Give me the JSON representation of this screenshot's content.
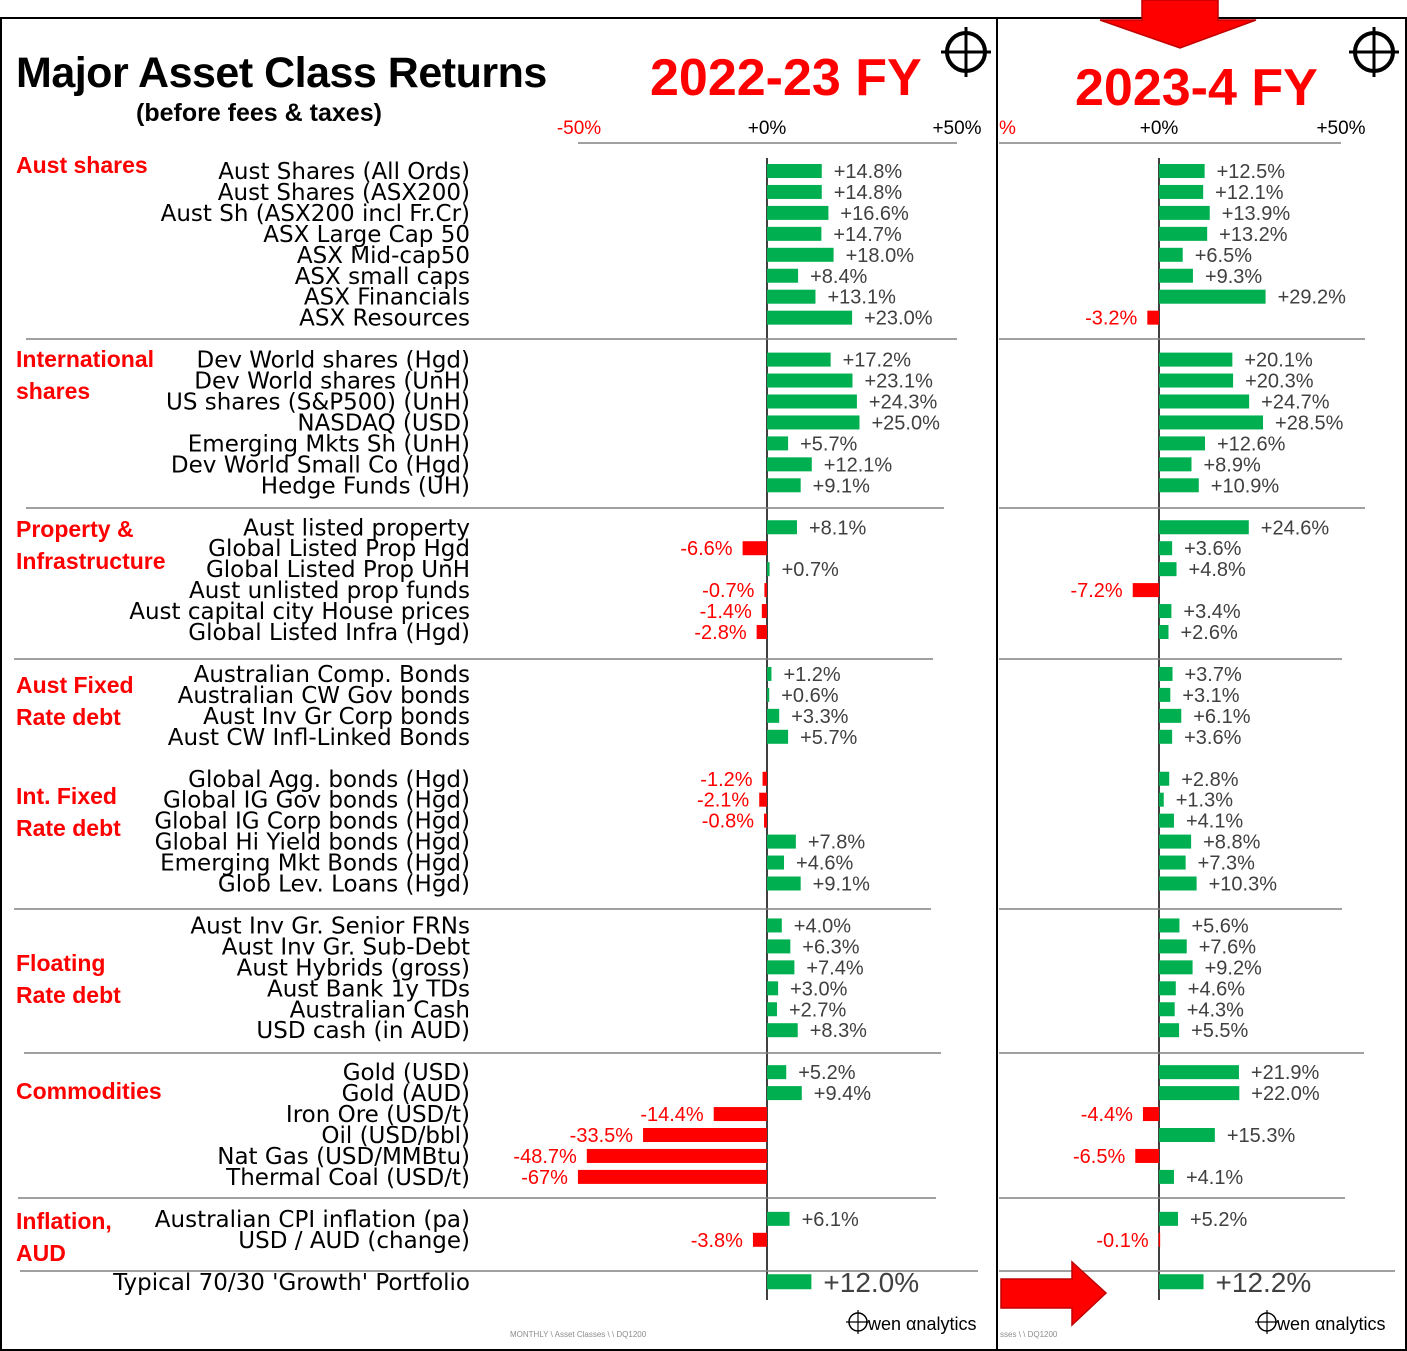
{
  "title": "Major Asset Class Returns",
  "subtitle": "(before fees & taxes)",
  "colors": {
    "positive": "#00b050",
    "negative": "#ff0000",
    "accent": "#ff0000",
    "text": "#404040"
  },
  "icons": {
    "crosshair": "crosshair-icon",
    "right_arrow": "right-arrow-icon",
    "down_arrow": "down-arrow-icon"
  },
  "footer": {
    "source_left": "MONTHLY \\ Asset Classes \\ \\ DQ1200",
    "source_right": "sses \\ \\ DQ1200",
    "brand_left": "wen αnalytics",
    "brand_right": "wen αnalytics"
  },
  "groups": [
    "Aust shares",
    "International\nshares",
    "Property &\nInfrastructure",
    "Aust Fixed\nRate debt",
    "Int. Fixed\nRate debt",
    "Floating\nRate debt",
    "Commodities",
    "Inflation,\nAUD"
  ],
  "chart_data": [
    {
      "type": "bar",
      "orientation": "horizontal",
      "title": "2022-23 FY",
      "xlim": [
        -50,
        50
      ],
      "tick_labels": [
        "-50%",
        "+0%",
        "+50%"
      ],
      "categories": [
        "Aust Shares (All Ords)",
        "Aust Shares (ASX200)",
        "Aust Sh (ASX200 incl Fr.Cr)",
        "ASX Large Cap 50",
        "ASX Mid-cap50",
        "ASX small caps",
        "ASX Financials",
        "ASX Resources",
        "Dev World shares (Hgd)",
        "Dev World shares (UnH)",
        "US shares (S&P500) (UnH)",
        "NASDAQ (USD)",
        "Emerging Mkts Sh (UnH)",
        "Dev World Small Co (Hgd)",
        "Hedge Funds (UH)",
        "Aust listed property",
        "Global Listed Prop Hgd",
        "Global Listed Prop UnH",
        "Aust unlisted prop funds",
        "Aust capital city House prices",
        "Global Listed Infra (Hgd)",
        "Australian Comp. Bonds",
        "Australian CW Gov bonds",
        "Aust Inv Gr Corp bonds",
        "Aust CW Infl-Linked Bonds",
        "Global Agg. bonds (Hgd)",
        "Global IG Gov bonds (Hgd)",
        "Global IG Corp bonds (Hgd)",
        "Global Hi Yield bonds (Hgd)",
        "Emerging Mkt Bonds (Hgd)",
        "Glob Lev. Loans (Hgd)",
        "Aust Inv Gr. Senior FRNs",
        "Aust Inv Gr. Sub-Debt",
        "Aust Hybrids (gross)",
        "Aust Bank 1y TDs",
        "Australian Cash",
        "USD cash (in AUD)",
        "Gold (USD)",
        "Gold (AUD)",
        "Iron Ore (USD/t)",
        "Oil (USD/bbl)",
        "Nat Gas (USD/MMBtu)",
        "Thermal Coal (USD/t)",
        "Australian CPI inflation (pa)",
        "USD / AUD (change)",
        "Typical 70/30 'Growth' Portfolio"
      ],
      "values": [
        14.8,
        14.8,
        16.6,
        14.7,
        18.0,
        8.4,
        13.1,
        23.0,
        17.2,
        23.1,
        24.3,
        25.0,
        5.7,
        12.1,
        9.1,
        8.1,
        -6.6,
        0.7,
        -0.7,
        -1.4,
        -2.8,
        1.2,
        0.6,
        3.3,
        5.7,
        -1.2,
        -2.1,
        -0.8,
        7.8,
        4.6,
        9.1,
        4.0,
        6.3,
        7.4,
        3.0,
        2.7,
        8.3,
        5.2,
        9.4,
        -14.4,
        -33.5,
        -48.7,
        -67,
        6.1,
        -3.8,
        12.0
      ],
      "data_labels": [
        "+14.8%",
        "+14.8%",
        "+16.6%",
        "+14.7%",
        "+18.0%",
        "+8.4%",
        "+13.1%",
        "+23.0%",
        "+17.2%",
        "+23.1%",
        "+24.3%",
        "+25.0%",
        "+5.7%",
        "+12.1%",
        "+9.1%",
        "+8.1%",
        "-6.6%",
        "+0.7%",
        "-0.7%",
        "-1.4%",
        "-2.8%",
        "+1.2%",
        "+0.6%",
        "+3.3%",
        "+5.7%",
        "-1.2%",
        "-2.1%",
        "-0.8%",
        "+7.8%",
        "+4.6%",
        "+9.1%",
        "+4.0%",
        "+6.3%",
        "+7.4%",
        "+3.0%",
        "+2.7%",
        "+8.3%",
        "+5.2%",
        "+9.4%",
        "-14.4%",
        "-33.5%",
        "-48.7%",
        "-67%",
        "+6.1%",
        "-3.8%",
        "+12.0%"
      ]
    },
    {
      "type": "bar",
      "orientation": "horizontal",
      "title": "2023-4 FY",
      "xlim": [
        -50,
        50
      ],
      "tick_labels": [
        "%",
        "+0%",
        "+50%"
      ],
      "categories": [
        "Aust Shares (All Ords)",
        "Aust Shares (ASX200)",
        "Aust Sh (ASX200 incl Fr.Cr)",
        "ASX Large Cap 50",
        "ASX Mid-cap50",
        "ASX small caps",
        "ASX Financials",
        "ASX Resources",
        "Dev World shares (Hgd)",
        "Dev World shares (UnH)",
        "US shares (S&P500) (UnH)",
        "NASDAQ (USD)",
        "Emerging Mkts Sh (UnH)",
        "Dev World Small Co (Hgd)",
        "Hedge Funds (UH)",
        "Aust listed property",
        "Global Listed Prop Hgd",
        "Global Listed Prop UnH",
        "Aust unlisted prop funds",
        "Aust capital city House prices",
        "Global Listed Infra (Hgd)",
        "Australian Comp. Bonds",
        "Australian CW Gov bonds",
        "Aust Inv Gr Corp bonds",
        "Aust CW Infl-Linked Bonds",
        "Global Agg. bonds (Hgd)",
        "Global IG Gov bonds (Hgd)",
        "Global IG Corp bonds (Hgd)",
        "Global Hi Yield bonds (Hgd)",
        "Emerging Mkt Bonds (Hgd)",
        "Glob Lev. Loans (Hgd)",
        "Aust Inv Gr. Senior FRNs",
        "Aust Inv Gr. Sub-Debt",
        "Aust Hybrids (gross)",
        "Aust Bank 1y TDs",
        "Australian Cash",
        "USD cash (in AUD)",
        "Gold (USD)",
        "Gold (AUD)",
        "Iron Ore (USD/t)",
        "Oil (USD/bbl)",
        "Nat Gas (USD/MMBtu)",
        "Thermal Coal (USD/t)",
        "Australian CPI inflation (pa)",
        "USD / AUD (change)",
        "Typical 70/30 'Growth' Portfolio"
      ],
      "values": [
        12.5,
        12.1,
        13.9,
        13.2,
        6.5,
        9.3,
        29.2,
        -3.2,
        20.1,
        20.3,
        24.7,
        28.5,
        12.6,
        8.9,
        10.9,
        24.6,
        3.6,
        4.8,
        -7.2,
        3.4,
        2.6,
        3.7,
        3.1,
        6.1,
        3.6,
        2.8,
        1.3,
        4.1,
        8.8,
        7.3,
        10.3,
        5.6,
        7.6,
        9.2,
        4.6,
        4.3,
        5.5,
        21.9,
        22.0,
        -4.4,
        15.3,
        -6.5,
        4.1,
        5.2,
        -0.1,
        12.2
      ],
      "data_labels": [
        "+12.5%",
        "+12.1%",
        "+13.9%",
        "+13.2%",
        "+6.5%",
        "+9.3%",
        "+29.2%",
        "-3.2%",
        "+20.1%",
        "+20.3%",
        "+24.7%",
        "+28.5%",
        "+12.6%",
        "+8.9%",
        "+10.9%",
        "+24.6%",
        "+3.6%",
        "+4.8%",
        "-7.2%",
        "+3.4%",
        "+2.6%",
        "+3.7%",
        "+3.1%",
        "+6.1%",
        "+3.6%",
        "+2.8%",
        "+1.3%",
        "+4.1%",
        "+8.8%",
        "+7.3%",
        "+10.3%",
        "+5.6%",
        "+7.6%",
        "+9.2%",
        "+4.6%",
        "+4.3%",
        "+5.5%",
        "+21.9%",
        "+22.0%",
        "-4.4%",
        "+15.3%",
        "-6.5%",
        "+4.1%",
        "+5.2%",
        "-0.1%",
        "+12.2%"
      ]
    }
  ]
}
